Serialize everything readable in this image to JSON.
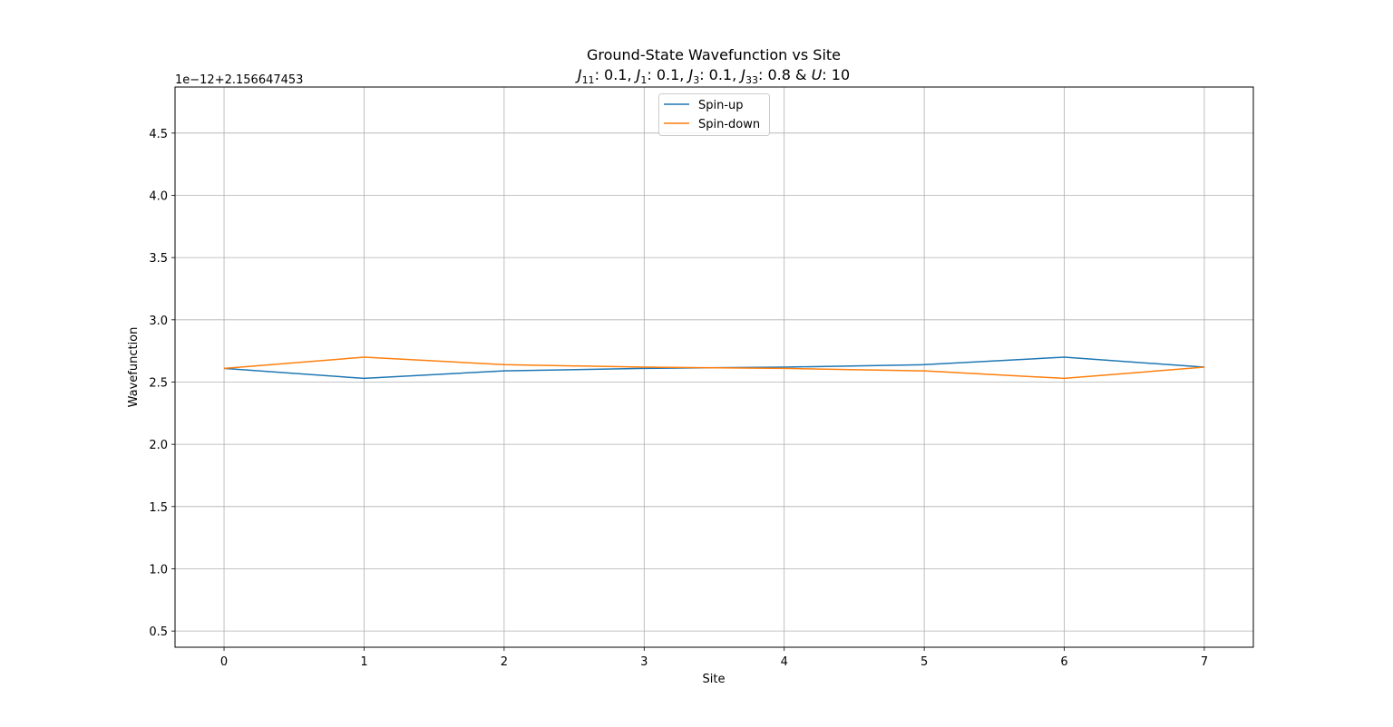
{
  "chart_data": {
    "type": "line",
    "title": "Ground-State Wavefunction vs Site",
    "subtitle": {
      "j11_sym": "J",
      "j11_sub": "11",
      "j11_val": ": 0.1, ",
      "j1_sym": "J",
      "j1_sub": "1",
      "j1_val": ": 0.1, ",
      "j3_sym": "J",
      "j3_sub": "3",
      "j3_val": ": 0.1, ",
      "j33_sym": "J",
      "j33_sub": "33",
      "j33_val": ": 0.8 & ",
      "u_sym": "U",
      "u_val": ": 10"
    },
    "xlabel": "Site",
    "ylabel": "Wavefunction",
    "offset_text": "1e−12+2.156647453",
    "x": [
      0,
      1,
      2,
      3,
      4,
      5,
      6,
      7
    ],
    "xlim": [
      -0.35,
      7.35
    ],
    "ylim": [
      0.37,
      4.87
    ],
    "xticks": [
      0,
      1,
      2,
      3,
      4,
      5,
      6,
      7
    ],
    "xtick_labels": [
      "0",
      "1",
      "2",
      "3",
      "4",
      "5",
      "6",
      "7"
    ],
    "yticks": [
      0.5,
      1.0,
      1.5,
      2.0,
      2.5,
      3.0,
      3.5,
      4.0,
      4.5
    ],
    "ytick_labels": [
      "0.5",
      "1.0",
      "1.5",
      "2.0",
      "2.5",
      "3.0",
      "3.5",
      "4.0",
      "4.5"
    ],
    "grid": true,
    "legend_position": "top-center",
    "series": [
      {
        "name": "Spin-up",
        "color": "#1f77b4",
        "values": [
          2.61,
          2.53,
          2.59,
          2.61,
          2.62,
          2.64,
          2.7,
          2.62
        ]
      },
      {
        "name": "Spin-down",
        "color": "#ff7f0e",
        "values": [
          2.61,
          2.7,
          2.64,
          2.62,
          2.61,
          2.59,
          2.53,
          2.62
        ]
      }
    ]
  }
}
